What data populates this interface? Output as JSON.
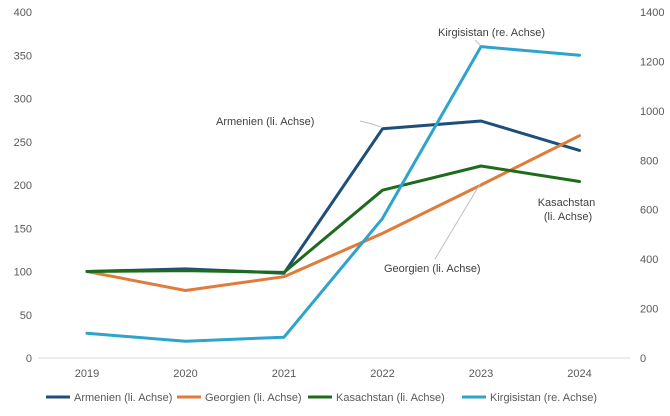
{
  "chart_data": {
    "type": "line",
    "categories": [
      "2019",
      "2020",
      "2021",
      "2022",
      "2023",
      "2024"
    ],
    "left_axis": {
      "ylim": [
        0,
        400
      ],
      "ticks": [
        0,
        50,
        100,
        150,
        200,
        250,
        300,
        350,
        400
      ]
    },
    "right_axis": {
      "ylim": [
        0,
        1400
      ],
      "ticks": [
        0,
        200,
        400,
        600,
        800,
        1000,
        1200,
        1400
      ]
    },
    "grid": false,
    "legend_position": "bottom",
    "series": [
      {
        "name": "Armenien (li. Achse)",
        "axis": "left",
        "color": "#1f4e79",
        "values": [
          100,
          103,
          98,
          265,
          274,
          240
        ]
      },
      {
        "name": "Georgien (li. Achse)",
        "axis": "left",
        "color": "#e07b39",
        "values": [
          100,
          78,
          94,
          144,
          200,
          257
        ]
      },
      {
        "name": "Kasachstan (li. Achse)",
        "axis": "left",
        "color": "#1e6b1e",
        "values": [
          100,
          101,
          99,
          194,
          222,
          204
        ]
      },
      {
        "name": "Kirgisistan (re. Achse)",
        "axis": "right",
        "color": "#2ea3cc",
        "values": [
          100,
          68,
          84,
          565,
          1260,
          1225
        ]
      }
    ],
    "annotations": [
      {
        "lines": [
          "Kirgisistan (re. Achse)"
        ],
        "series": 3
      },
      {
        "lines": [
          "Armenien (li. Achse)"
        ],
        "series": 0
      },
      {
        "lines": [
          "Kasachstan",
          "(li. Achse)"
        ],
        "series": 2
      },
      {
        "lines": [
          "Georgien (li. Achse)"
        ],
        "series": 1
      }
    ]
  }
}
